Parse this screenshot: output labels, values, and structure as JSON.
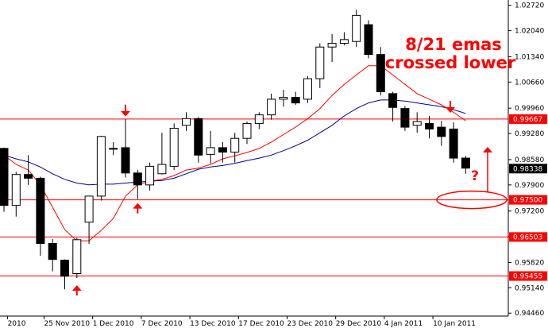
{
  "chart_data": {
    "type": "candlestick",
    "x_ticks": [
      "2010",
      "25 Nov 2010",
      "1 Dec 2010",
      "7 Dec 2010",
      "13 Dec 2010",
      "17 Dec 2010",
      "23 Dec 2010",
      "29 Dec 2010",
      "4 Jan 2011",
      "10 Jan 2011"
    ],
    "x_tick_candle_index": [
      0.3,
      3.3,
      7.3,
      11.3,
      15.3,
      19.3,
      23.3,
      27.3,
      31.3,
      35.3
    ],
    "y_ticks": [
      "1.02720",
      "1.02040",
      "1.01340",
      "1.00660",
      "0.99960",
      "0.99280",
      "0.98580",
      "0.97900",
      "0.97200",
      "0.96520",
      "0.95820",
      "0.95140",
      "0.94460"
    ],
    "ylim": [
      0.9438,
      1.0282
    ],
    "candles": [
      {
        "o": 0.9888,
        "h": 0.989,
        "l": 0.9718,
        "c": 0.9735
      },
      {
        "o": 0.9735,
        "h": 0.9825,
        "l": 0.9705,
        "c": 0.9818
      },
      {
        "o": 0.9818,
        "h": 0.987,
        "l": 0.979,
        "c": 0.9808
      },
      {
        "o": 0.9808,
        "h": 0.9812,
        "l": 0.96,
        "c": 0.9633
      },
      {
        "o": 0.9633,
        "h": 0.9645,
        "l": 0.9558,
        "c": 0.959
      },
      {
        "o": 0.9588,
        "h": 0.959,
        "l": 0.951,
        "c": 0.9545
      },
      {
        "o": 0.9552,
        "h": 0.9648,
        "l": 0.954,
        "c": 0.9643
      },
      {
        "o": 0.969,
        "h": 0.976,
        "l": 0.9632,
        "c": 0.976
      },
      {
        "o": 0.976,
        "h": 0.9922,
        "l": 0.9748,
        "c": 0.992
      },
      {
        "o": 0.9888,
        "h": 0.9905,
        "l": 0.987,
        "c": 0.9888
      },
      {
        "o": 0.989,
        "h": 0.9967,
        "l": 0.981,
        "c": 0.9822
      },
      {
        "o": 0.9822,
        "h": 0.983,
        "l": 0.9752,
        "c": 0.979
      },
      {
        "o": 0.979,
        "h": 0.985,
        "l": 0.9775,
        "c": 0.984
      },
      {
        "o": 0.982,
        "h": 0.993,
        "l": 0.9818,
        "c": 0.9845
      },
      {
        "o": 0.984,
        "h": 0.9955,
        "l": 0.983,
        "c": 0.9942
      },
      {
        "o": 0.995,
        "h": 0.9985,
        "l": 0.9935,
        "c": 0.9968
      },
      {
        "o": 0.9968,
        "h": 0.9972,
        "l": 0.985,
        "c": 0.987
      },
      {
        "o": 0.9872,
        "h": 0.9935,
        "l": 0.9848,
        "c": 0.989
      },
      {
        "o": 0.989,
        "h": 0.9905,
        "l": 0.985,
        "c": 0.9878
      },
      {
        "o": 0.9878,
        "h": 0.993,
        "l": 0.985,
        "c": 0.9915
      },
      {
        "o": 0.9915,
        "h": 0.996,
        "l": 0.99,
        "c": 0.9955
      },
      {
        "o": 0.9955,
        "h": 0.9985,
        "l": 0.994,
        "c": 0.9978
      },
      {
        "o": 0.9978,
        "h": 1.0035,
        "l": 0.9965,
        "c": 1.002
      },
      {
        "o": 1.002,
        "h": 1.0045,
        "l": 1.0,
        "c": 1.0025
      },
      {
        "o": 1.0025,
        "h": 1.004,
        "l": 1.0005,
        "c": 1.001
      },
      {
        "o": 1.002,
        "h": 1.0082,
        "l": 1.001,
        "c": 1.0075
      },
      {
        "o": 1.0075,
        "h": 1.017,
        "l": 1.005,
        "c": 1.016
      },
      {
        "o": 1.016,
        "h": 1.0195,
        "l": 1.012,
        "c": 1.017
      },
      {
        "o": 1.017,
        "h": 1.02,
        "l": 1.0165,
        "c": 1.018
      },
      {
        "o": 1.0175,
        "h": 1.026,
        "l": 1.016,
        "c": 1.0245
      },
      {
        "o": 1.022,
        "h": 1.0232,
        "l": 1.013,
        "c": 1.014
      },
      {
        "o": 1.014,
        "h": 1.016,
        "l": 1.003,
        "c": 1.004
      },
      {
        "o": 1.0035,
        "h": 1.004,
        "l": 0.996,
        "c": 0.9998
      },
      {
        "o": 0.9995,
        "h": 1.0002,
        "l": 0.9935,
        "c": 0.9945
      },
      {
        "o": 0.995,
        "h": 0.9985,
        "l": 0.993,
        "c": 0.996
      },
      {
        "o": 0.9955,
        "h": 0.9975,
        "l": 0.9915,
        "c": 0.994
      },
      {
        "o": 0.9945,
        "h": 0.9962,
        "l": 0.9895,
        "c": 0.992
      },
      {
        "o": 0.994,
        "h": 0.9958,
        "l": 0.985,
        "c": 0.9862
      },
      {
        "o": 0.9862,
        "h": 0.9868,
        "l": 0.982,
        "c": 0.9835
      }
    ],
    "ema_red": [
      0.987,
      0.9845,
      0.983,
      0.979,
      0.973,
      0.967,
      0.964,
      0.964,
      0.9668,
      0.97,
      0.976,
      0.979,
      0.98,
      0.9805,
      0.9815,
      0.983,
      0.9835,
      0.9845,
      0.986,
      0.9868,
      0.9877,
      0.9888,
      0.9905,
      0.9925,
      0.9945,
      0.9968,
      0.9995,
      1.003,
      1.006,
      1.0085,
      1.011,
      1.011,
      1.0085,
      1.006,
      1.0035,
      1.002,
      1.0005,
      0.9985,
      0.9962
    ],
    "ema_blue": [
      0.987,
      0.986,
      0.9852,
      0.9838,
      0.982,
      0.9805,
      0.9795,
      0.979,
      0.9792,
      0.9792,
      0.9795,
      0.9798,
      0.98,
      0.9802,
      0.9808,
      0.982,
      0.9832,
      0.9838,
      0.9842,
      0.9848,
      0.9855,
      0.9862,
      0.987,
      0.9882,
      0.9895,
      0.991,
      0.993,
      0.995,
      0.9975,
      0.9995,
      1.001,
      1.0018,
      1.0018,
      1.0015,
      1.001,
      1.0005,
      1.0,
      0.9992,
      0.9982
    ],
    "levels": [
      {
        "value": 0.99667,
        "label": "0.99667",
        "color": "#ff0000"
      },
      {
        "value": 0.975,
        "label": "0.97500",
        "color": "#ff0000"
      },
      {
        "value": 0.96503,
        "label": "0.96503",
        "color": "#ff0000"
      },
      {
        "value": 0.95455,
        "label": "0.95455",
        "color": "#ff0000"
      }
    ],
    "current_price": {
      "value": 0.98338,
      "label": "0.98338"
    },
    "annotation": {
      "line1": "8/21 emas",
      "line2": "crossed lower",
      "question": "?"
    },
    "colors": {
      "bull_body": "#ffffff",
      "bear_body": "#000000",
      "ema_fast": "#ff0000",
      "ema_slow": "#00008b",
      "level": "#ff0000",
      "accent": "#ff0000"
    }
  }
}
